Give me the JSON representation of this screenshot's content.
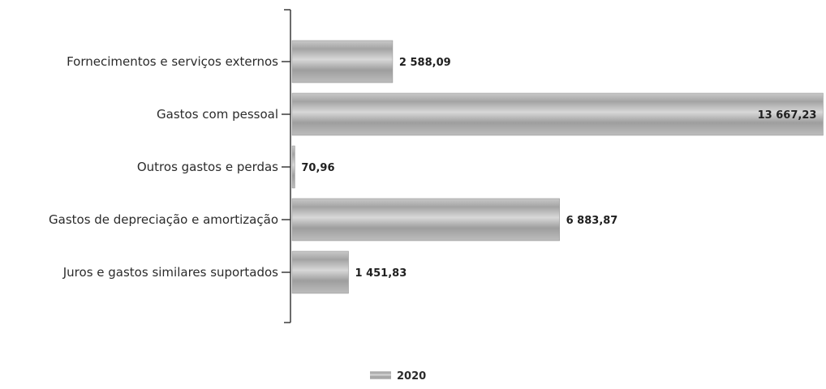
{
  "chart_data": {
    "type": "bar",
    "orientation": "horizontal",
    "categories": [
      "Fornecimentos e serviços externos",
      "Gastos com pessoal",
      "Outros gastos e perdas",
      "Gastos de depreciação e amortização",
      "Juros e gastos similares suportados"
    ],
    "series": [
      {
        "name": "2020",
        "values": [
          2588.09,
          13667.23,
          70.96,
          6883.87,
          1451.83
        ]
      }
    ],
    "value_labels": [
      "2 588,09",
      "13 667,23",
      "70,96",
      "6 883,87",
      "1 451,83"
    ],
    "xlim": [
      0,
      13700
    ],
    "grid": false,
    "legend_position": "bottom-center",
    "colors": {
      "bar": "#9a9a9a",
      "bar_light": "#d4d4d4",
      "axis": "#3a3a3a"
    }
  }
}
